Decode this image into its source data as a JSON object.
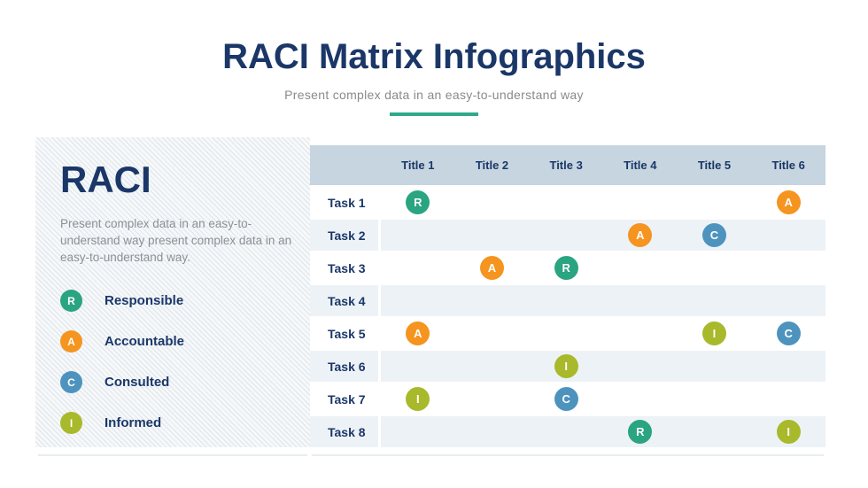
{
  "header": {
    "title": "RACI Matrix Infographics",
    "subtitle": "Present complex data in an easy-to-understand way"
  },
  "panel": {
    "heading": "RACI",
    "description": "Present complex data in an easy-to-understand way present complex data in an easy-to-understand way."
  },
  "roles": {
    "R": {
      "label": "Responsible",
      "color": "#2AA481"
    },
    "A": {
      "label": "Accountable",
      "color": "#F5941F"
    },
    "C": {
      "label": "Consulted",
      "color": "#4E93BE"
    },
    "I": {
      "label": "Informed",
      "color": "#A8B92B"
    }
  },
  "legend_order": [
    "R",
    "A",
    "C",
    "I"
  ],
  "matrix": {
    "columns": [
      "Title 1",
      "Title 2",
      "Title 3",
      "Title 4",
      "Title 5",
      "Title 6"
    ],
    "rows": [
      {
        "label": "Task 1",
        "cells": [
          "R",
          "",
          "",
          "",
          "",
          "A"
        ]
      },
      {
        "label": "Task 2",
        "cells": [
          "",
          "",
          "",
          "A",
          "C",
          ""
        ]
      },
      {
        "label": "Task 3",
        "cells": [
          "",
          "A",
          "R",
          "",
          "",
          ""
        ]
      },
      {
        "label": "Task 4",
        "cells": [
          "",
          "",
          "",
          "",
          "",
          ""
        ]
      },
      {
        "label": "Task 5",
        "cells": [
          "A",
          "",
          "",
          "",
          "I",
          "C"
        ]
      },
      {
        "label": "Task 6",
        "cells": [
          "",
          "",
          "I",
          "",
          "",
          ""
        ]
      },
      {
        "label": "Task 7",
        "cells": [
          "I",
          "",
          "C",
          "",
          "",
          ""
        ]
      },
      {
        "label": "Task 8",
        "cells": [
          "",
          "",
          "",
          "R",
          "",
          "I"
        ]
      }
    ]
  },
  "colors": {
    "navy": "#1B3768",
    "accent_teal": "#2FA98C",
    "subtitle_gray": "#8A8A8A",
    "header_band": "#C6D5DF",
    "alt_row": "#EDF2F7"
  }
}
